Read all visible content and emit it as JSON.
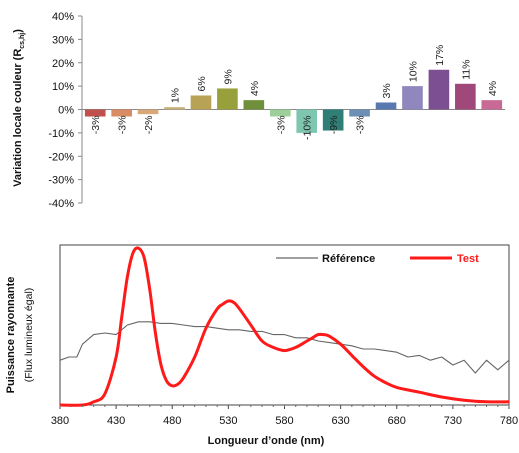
{
  "chart_data": [
    {
      "type": "bar",
      "ylabel": "Variation locale couleur (R",
      "ylabel_sub": "cs,hj",
      "ylabel_close": ")",
      "ylim": [
        -40,
        40
      ],
      "yticks": [
        "40%",
        "30%",
        "20%",
        "10%",
        "0%",
        "-10%",
        "-20%",
        "-30%",
        "-40%"
      ],
      "ytick_values": [
        40,
        30,
        20,
        10,
        0,
        -10,
        -20,
        -30,
        -40
      ],
      "values": [
        -3,
        -3,
        -2,
        1,
        6,
        9,
        4,
        -3,
        -10,
        -9,
        -3,
        3,
        10,
        17,
        11,
        4
      ],
      "labels": [
        "-3%",
        "-3%",
        "-2%",
        "1%",
        "6%",
        "9%",
        "4%",
        "-3%",
        "-10%",
        "-9%",
        "-3%",
        "3%",
        "10%",
        "17%",
        "11%",
        "4%"
      ],
      "colors": [
        "#c0504d",
        "#d98b63",
        "#d8a878",
        "#c9b07a",
        "#b8a255",
        "#97a03a",
        "#6f8f3a",
        "#9dcf9a",
        "#7fc6b0",
        "#2f7f77",
        "#6b8fb5",
        "#5a78b0",
        "#8f87bd",
        "#7b4f92",
        "#a0487a",
        "#c86a95"
      ],
      "grid": false
    },
    {
      "type": "line",
      "xlabel": "Longueur d’onde (nm)",
      "ylabel": "Puissance rayonnante",
      "ylabel2": "(Flux lumineux égal)",
      "xlim": [
        380,
        780
      ],
      "xticks": [
        "380",
        "430",
        "480",
        "530",
        "580",
        "630",
        "680",
        "730",
        "780"
      ],
      "xtick_values": [
        380,
        430,
        480,
        530,
        580,
        630,
        680,
        730,
        780
      ],
      "legend_position": "top-right",
      "series": [
        {
          "name": "Référence",
          "color": "#666666",
          "x": [
            380,
            388,
            395,
            400,
            410,
            420,
            430,
            440,
            450,
            460,
            470,
            480,
            490,
            500,
            510,
            520,
            530,
            540,
            550,
            560,
            570,
            580,
            590,
            600,
            610,
            620,
            630,
            640,
            650,
            660,
            670,
            680,
            690,
            700,
            710,
            720,
            730,
            740,
            750,
            760,
            770,
            780
          ],
          "y": [
            0.28,
            0.3,
            0.3,
            0.38,
            0.44,
            0.45,
            0.44,
            0.5,
            0.52,
            0.52,
            0.51,
            0.51,
            0.5,
            0.49,
            0.49,
            0.48,
            0.47,
            0.47,
            0.46,
            0.46,
            0.44,
            0.44,
            0.42,
            0.42,
            0.4,
            0.39,
            0.38,
            0.37,
            0.35,
            0.35,
            0.34,
            0.33,
            0.3,
            0.31,
            0.28,
            0.3,
            0.25,
            0.28,
            0.2,
            0.28,
            0.22,
            0.28
          ]
        },
        {
          "name": "Test",
          "color": "#ff1a1a",
          "x": [
            380,
            400,
            410,
            420,
            430,
            435,
            440,
            445,
            450,
            455,
            460,
            465,
            470,
            475,
            480,
            485,
            490,
            500,
            510,
            520,
            525,
            530,
            535,
            540,
            550,
            560,
            570,
            580,
            590,
            600,
            605,
            610,
            615,
            620,
            630,
            640,
            650,
            660,
            670,
            680,
            700,
            720,
            740,
            760,
            780
          ],
          "y": [
            0.0,
            0.0,
            0.02,
            0.07,
            0.3,
            0.55,
            0.8,
            0.95,
            0.98,
            0.92,
            0.72,
            0.45,
            0.25,
            0.15,
            0.12,
            0.13,
            0.17,
            0.3,
            0.48,
            0.6,
            0.63,
            0.65,
            0.64,
            0.6,
            0.5,
            0.4,
            0.36,
            0.34,
            0.36,
            0.4,
            0.42,
            0.44,
            0.44,
            0.43,
            0.38,
            0.31,
            0.24,
            0.18,
            0.14,
            0.11,
            0.08,
            0.05,
            0.03,
            0.02,
            0.02
          ]
        }
      ]
    }
  ]
}
